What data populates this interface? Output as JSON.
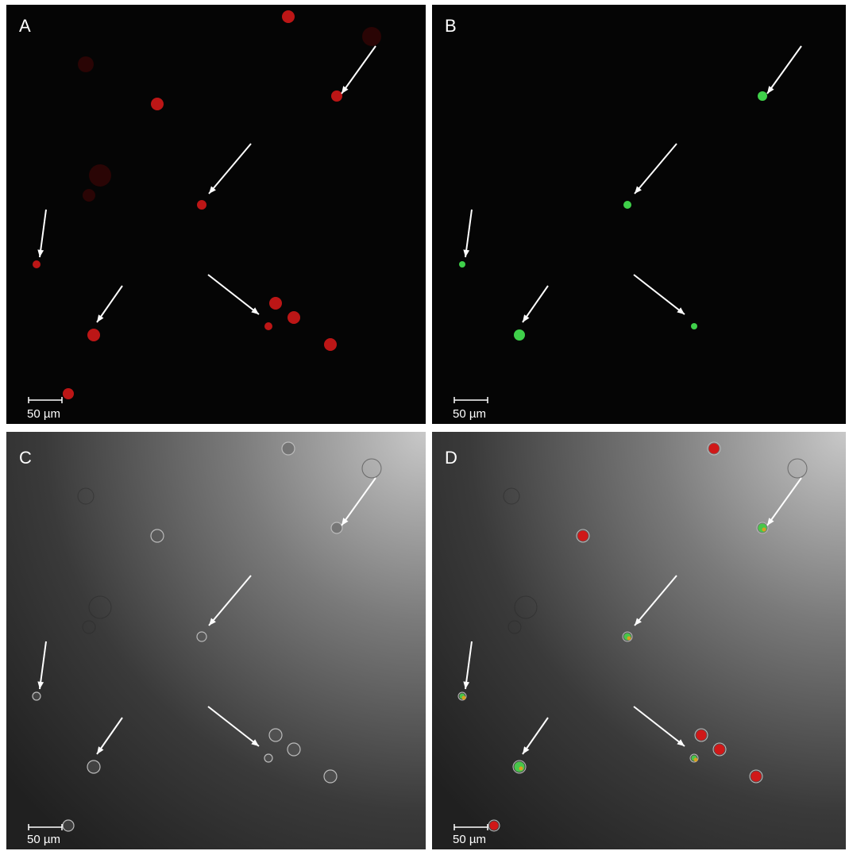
{
  "panels": [
    {
      "label": "A",
      "scale_label": "50 µm"
    },
    {
      "label": "B",
      "scale_label": "50 µm"
    },
    {
      "label": "C",
      "scale_label": "50 µm"
    },
    {
      "label": "D",
      "scale_label": "50 µm"
    }
  ]
}
